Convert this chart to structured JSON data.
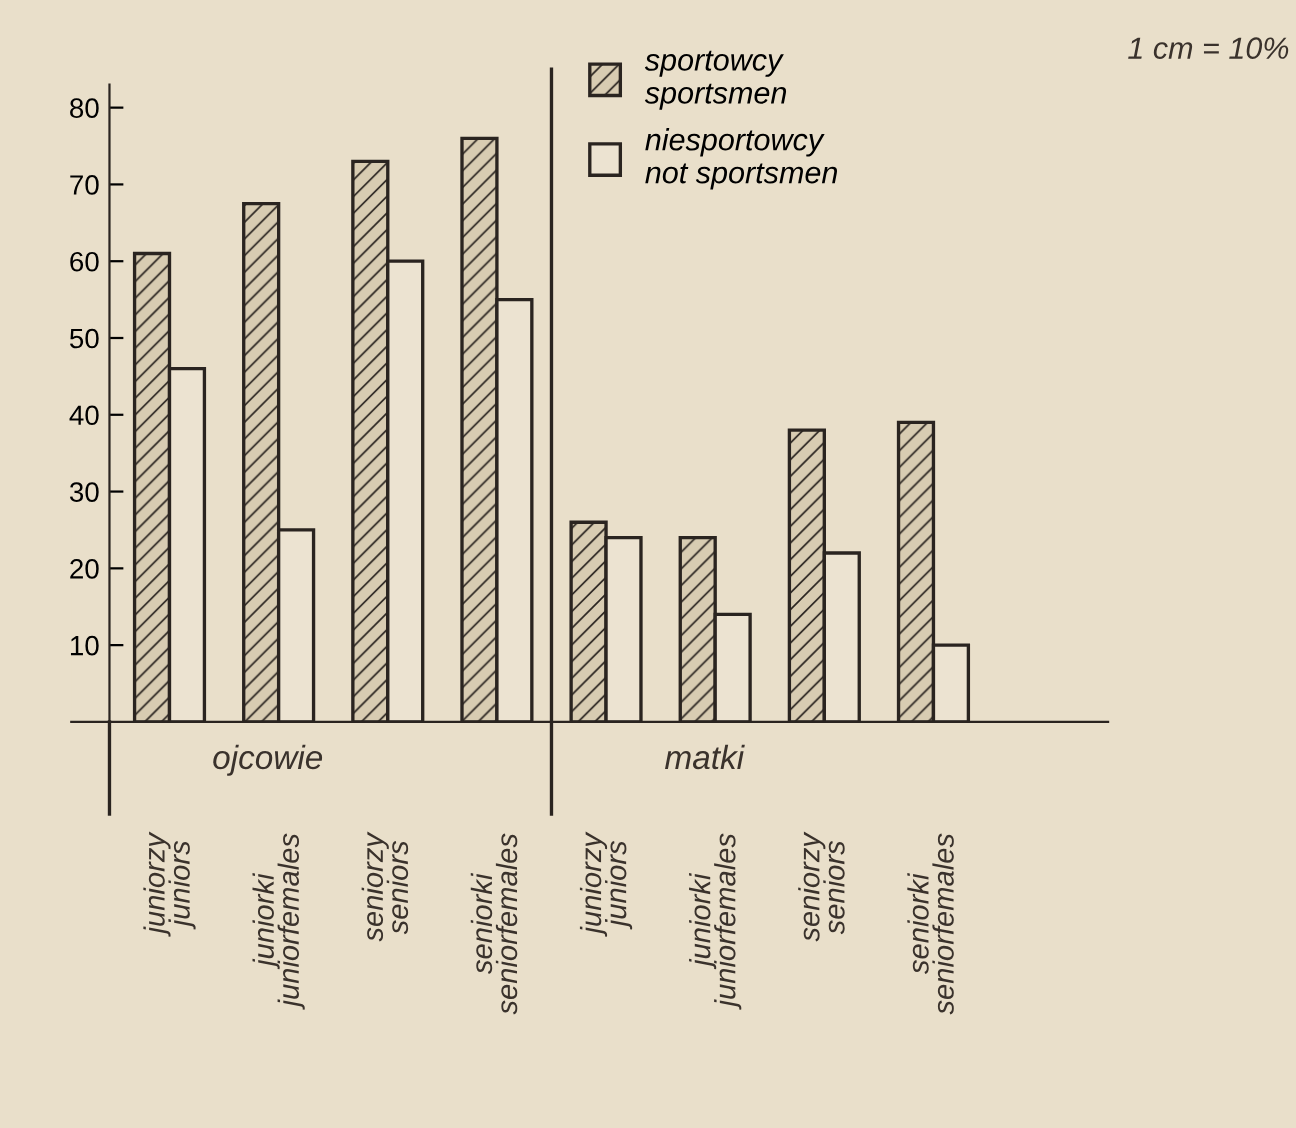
{
  "chart_data": {
    "type": "bar",
    "categories": [
      "juniorzy\njuniors",
      "juniorki\njuniorfemales",
      "seniorzy\nseniors",
      "seniorki\nseniorfemales",
      "juniorzy\njuniors",
      "juniorki\njuniorfemales",
      "seniorzy\nseniors",
      "seniorki\nseniorfemales"
    ],
    "series": [
      {
        "name": "sportowcy\nsportsmen",
        "color": "#2a2420",
        "values": [
          61,
          67.5,
          73,
          76,
          26,
          24,
          38,
          39
        ]
      },
      {
        "name": "niesportowcy\nnot sportsmen",
        "color": "#ece3d1",
        "values": [
          46,
          25,
          60,
          55,
          24,
          14,
          22,
          10
        ]
      }
    ],
    "ylim": [
      0,
      83
    ],
    "yticks": [
      10,
      20,
      30,
      40,
      50,
      60,
      70,
      80
    ],
    "annotations": [
      "ojcowie",
      "matki",
      "1 cm = 10%"
    ],
    "legend": "top right",
    "grid": false
  }
}
